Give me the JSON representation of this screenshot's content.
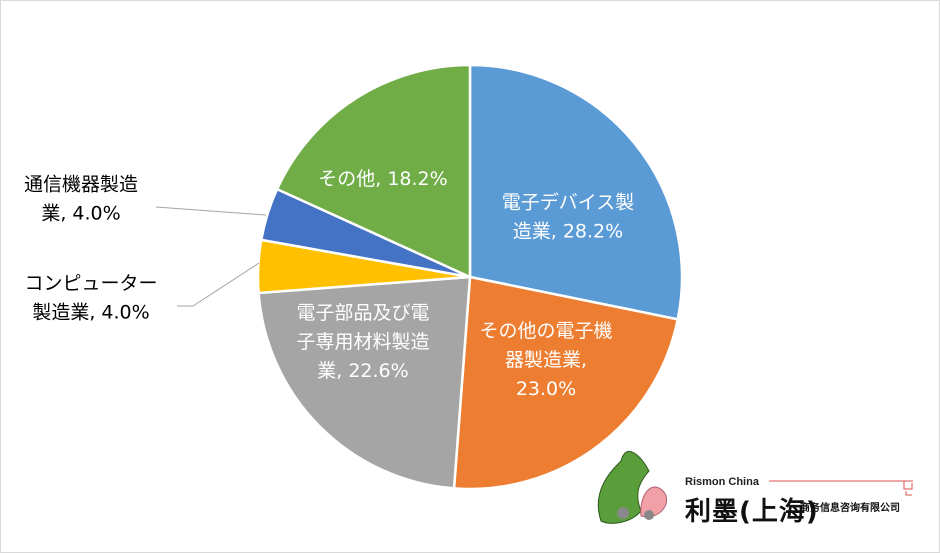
{
  "chart_data": {
    "type": "pie",
    "start_angle": "12 o'clock, clockwise",
    "slices": [
      {
        "label": [
          "電子デバイス製",
          "造業, 28.2%"
        ],
        "value": 28.2,
        "color": "#5b9bd5",
        "label_position": "inside"
      },
      {
        "label": [
          "その他の電子機",
          "器製造業,",
          "23.0%"
        ],
        "value": 23.0,
        "color": "#ed7d31",
        "label_position": "inside"
      },
      {
        "label": [
          "電子部品及び電",
          "子専用材料製造",
          "業, 22.6%"
        ],
        "value": 22.6,
        "color": "#a5a5a5",
        "label_position": "inside"
      },
      {
        "label": [
          "コンピューター",
          "製造業, 4.0%"
        ],
        "value": 4.0,
        "color": "#ffc000",
        "label_position": "outside"
      },
      {
        "label": [
          "通信機器製造",
          "業, 4.0%"
        ],
        "value": 4.0,
        "color": "#4472c4",
        "label_position": "outside"
      },
      {
        "label": [
          "その他, 18.2%"
        ],
        "value": 18.2,
        "color": "#70ad47",
        "label_position": "inside"
      }
    ]
  },
  "logo": {
    "en": "Rismon China",
    "cn": "利墨(上海)",
    "sub": "商务信息咨询有限公司"
  }
}
